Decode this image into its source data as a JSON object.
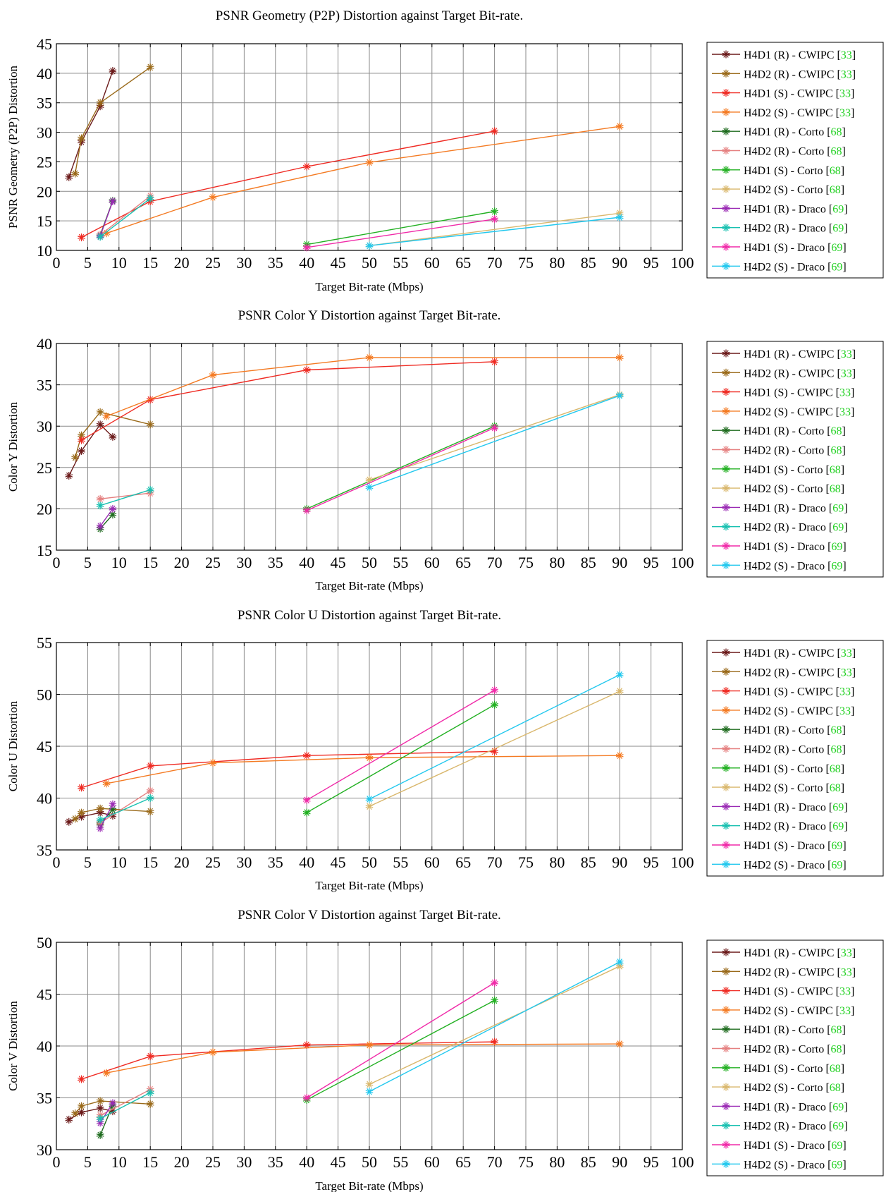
{
  "colors": {
    "H4D1 (R) - CWIPC": "#6b1a1a",
    "H4D2 (R) - CWIPC": "#9a6a1a",
    "H4D1 (S) - CWIPC": "#ef2a22",
    "H4D2 (S) - CWIPC": "#f47a22",
    "H4D1 (R) - Corto": "#1e6b1e",
    "H4D2 (R) - Corto": "#e58080",
    "H4D1 (S) - Corto": "#22b022",
    "H4D2 (S) - Corto": "#d9b76c",
    "H4D1 (R) - Draco": "#9a2ab4",
    "H4D2 (R) - Draco": "#18c0b0",
    "H4D1 (S) - Draco": "#f02aa8",
    "H4D2 (S) - Draco": "#22c8ee",
    "ref": "#20d020"
  },
  "legend": [
    {
      "name": "H4D1 (R) - CWIPC",
      "ref": "33"
    },
    {
      "name": "H4D2 (R) - CWIPC",
      "ref": "33"
    },
    {
      "name": "H4D1 (S) - CWIPC",
      "ref": "33"
    },
    {
      "name": "H4D2 (S) - CWIPC",
      "ref": "33"
    },
    {
      "name": "H4D1 (R) - Corto",
      "ref": "68"
    },
    {
      "name": "H4D2 (R) - Corto",
      "ref": "68"
    },
    {
      "name": "H4D1 (S) - Corto",
      "ref": "68"
    },
    {
      "name": "H4D2 (S) - Corto",
      "ref": "68"
    },
    {
      "name": "H4D1 (R) - Draco",
      "ref": "69"
    },
    {
      "name": "H4D2 (R) - Draco",
      "ref": "69"
    },
    {
      "name": "H4D1 (S) - Draco",
      "ref": "69"
    },
    {
      "name": "H4D2 (S) - Draco",
      "ref": "69"
    }
  ],
  "chart_data": [
    {
      "type": "line",
      "title": "PSNR Geometry (P2P) Distortion against Target Bit-rate.",
      "xlabel": "Target Bit-rate (Mbps)",
      "ylabel": "PSNR Geometry (P2P) Distortion",
      "xlim": [
        0,
        100
      ],
      "ylim": [
        10,
        45
      ],
      "xticks": [
        0,
        5,
        10,
        15,
        20,
        25,
        30,
        35,
        40,
        45,
        50,
        55,
        60,
        65,
        70,
        75,
        80,
        85,
        90,
        95,
        100
      ],
      "yticks": [
        10,
        15,
        20,
        25,
        30,
        35,
        40,
        45
      ],
      "grid": true,
      "legend_position": "right",
      "series": [
        {
          "name": "H4D1 (R) - CWIPC",
          "x": [
            2,
            4,
            7,
            9
          ],
          "y": [
            22.4,
            28.4,
            34.4,
            40.4
          ]
        },
        {
          "name": "H4D2 (R) - CWIPC",
          "x": [
            3,
            4,
            7,
            15
          ],
          "y": [
            23,
            29,
            35,
            41
          ]
        },
        {
          "name": "H4D1 (S) - CWIPC",
          "x": [
            4,
            15,
            40,
            70
          ],
          "y": [
            12.2,
            18.3,
            24.2,
            30.2
          ]
        },
        {
          "name": "H4D2 (S) - CWIPC",
          "x": [
            8,
            25,
            50,
            90
          ],
          "y": [
            12.9,
            19,
            24.9,
            31
          ]
        },
        {
          "name": "H4D1 (R) - Corto",
          "x": [
            7,
            9
          ],
          "y": [
            12.6,
            18.4
          ]
        },
        {
          "name": "H4D2 (R) - Corto",
          "x": [
            7,
            15
          ],
          "y": [
            12.6,
            19.2
          ]
        },
        {
          "name": "H4D1 (S) - Corto",
          "x": [
            40,
            70
          ],
          "y": [
            11,
            16.6
          ]
        },
        {
          "name": "H4D2 (S) - Corto",
          "x": [
            50,
            90
          ],
          "y": [
            10.8,
            16.3
          ]
        },
        {
          "name": "H4D1 (R) - Draco",
          "x": [
            7,
            9
          ],
          "y": [
            12.4,
            18.3
          ]
        },
        {
          "name": "H4D2 (R) - Draco",
          "x": [
            7,
            15
          ],
          "y": [
            12.3,
            18.8
          ]
        },
        {
          "name": "H4D1 (S) - Draco",
          "x": [
            40,
            70
          ],
          "y": [
            10.5,
            15.3
          ]
        },
        {
          "name": "H4D2 (S) - Draco",
          "x": [
            50,
            90
          ],
          "y": [
            10.8,
            15.6
          ]
        }
      ]
    },
    {
      "type": "line",
      "title": "PSNR Color Y Distortion against Target Bit-rate.",
      "xlabel": "Target Bit-rate (Mbps)",
      "ylabel": "Color Y Distortion",
      "xlim": [
        0,
        100
      ],
      "ylim": [
        15,
        40
      ],
      "xticks": [
        0,
        5,
        10,
        15,
        20,
        25,
        30,
        35,
        40,
        45,
        50,
        55,
        60,
        65,
        70,
        75,
        80,
        85,
        90,
        95,
        100
      ],
      "yticks": [
        15,
        20,
        25,
        30,
        35,
        40
      ],
      "grid": true,
      "legend_position": "right",
      "series": [
        {
          "name": "H4D1 (R) - CWIPC",
          "x": [
            2,
            4,
            7,
            9
          ],
          "y": [
            24,
            27,
            30.2,
            28.7
          ]
        },
        {
          "name": "H4D2 (R) - CWIPC",
          "x": [
            3,
            4,
            7,
            15
          ],
          "y": [
            26.2,
            28.9,
            31.7,
            30.2
          ]
        },
        {
          "name": "H4D1 (S) - CWIPC",
          "x": [
            4,
            15,
            40,
            70
          ],
          "y": [
            28.3,
            33.2,
            36.8,
            37.8
          ]
        },
        {
          "name": "H4D2 (S) - CWIPC",
          "x": [
            8,
            25,
            50,
            90
          ],
          "y": [
            31.2,
            36.2,
            38.3,
            38.3
          ]
        },
        {
          "name": "H4D1 (R) - Corto",
          "x": [
            7,
            9
          ],
          "y": [
            17.6,
            19.3
          ]
        },
        {
          "name": "H4D2 (R) - Corto",
          "x": [
            7,
            15
          ],
          "y": [
            21.2,
            21.9
          ]
        },
        {
          "name": "H4D1 (S) - Corto",
          "x": [
            40,
            70
          ],
          "y": [
            20,
            30
          ]
        },
        {
          "name": "H4D2 (S) - Corto",
          "x": [
            50,
            90
          ],
          "y": [
            23.5,
            33.8
          ]
        },
        {
          "name": "H4D1 (R) - Draco",
          "x": [
            7,
            9
          ],
          "y": [
            17.9,
            20
          ]
        },
        {
          "name": "H4D2 (R) - Draco",
          "x": [
            7,
            15
          ],
          "y": [
            20.4,
            22.3
          ]
        },
        {
          "name": "H4D1 (S) - Draco",
          "x": [
            40,
            70
          ],
          "y": [
            19.8,
            29.8
          ]
        },
        {
          "name": "H4D2 (S) - Draco",
          "x": [
            50,
            90
          ],
          "y": [
            22.6,
            33.7
          ]
        }
      ]
    },
    {
      "type": "line",
      "title": "PSNR Color U Distortion against Target Bit-rate.",
      "xlabel": "Target Bit-rate (Mbps)",
      "ylabel": "Color U Distortion",
      "xlim": [
        0,
        100
      ],
      "ylim": [
        35,
        55
      ],
      "xticks": [
        0,
        5,
        10,
        15,
        20,
        25,
        30,
        35,
        40,
        45,
        50,
        55,
        60,
        65,
        70,
        75,
        80,
        85,
        90,
        95,
        100
      ],
      "yticks": [
        35,
        40,
        45,
        50,
        55
      ],
      "grid": true,
      "legend_position": "right",
      "series": [
        {
          "name": "H4D1 (R) - CWIPC",
          "x": [
            2,
            4,
            7,
            9
          ],
          "y": [
            37.7,
            38.2,
            38.6,
            38.3
          ]
        },
        {
          "name": "H4D2 (R) - CWIPC",
          "x": [
            3,
            4,
            7,
            15
          ],
          "y": [
            38,
            38.6,
            39,
            38.7
          ]
        },
        {
          "name": "H4D1 (S) - CWIPC",
          "x": [
            4,
            15,
            40,
            70
          ],
          "y": [
            41,
            43.1,
            44.1,
            44.5
          ]
        },
        {
          "name": "H4D2 (S) - CWIPC",
          "x": [
            8,
            25,
            50,
            90
          ],
          "y": [
            41.4,
            43.4,
            43.9,
            44.1
          ]
        },
        {
          "name": "H4D1 (R) - Corto",
          "x": [
            7,
            9
          ],
          "y": [
            37.5,
            38.9
          ]
        },
        {
          "name": "H4D2 (R) - Corto",
          "x": [
            7,
            15
          ],
          "y": [
            37.6,
            40.7
          ]
        },
        {
          "name": "H4D1 (S) - Corto",
          "x": [
            40,
            70
          ],
          "y": [
            38.6,
            49
          ]
        },
        {
          "name": "H4D2 (S) - Corto",
          "x": [
            50,
            90
          ],
          "y": [
            39.2,
            50.3
          ]
        },
        {
          "name": "H4D1 (R) - Draco",
          "x": [
            7,
            9
          ],
          "y": [
            37.1,
            39.4
          ]
        },
        {
          "name": "H4D2 (R) - Draco",
          "x": [
            7,
            15
          ],
          "y": [
            37.9,
            40
          ]
        },
        {
          "name": "H4D1 (S) - Draco",
          "x": [
            40,
            70
          ],
          "y": [
            39.8,
            50.4
          ]
        },
        {
          "name": "H4D2 (S) - Draco",
          "x": [
            50,
            90
          ],
          "y": [
            39.9,
            51.9
          ]
        }
      ]
    },
    {
      "type": "line",
      "title": "PSNR Color V Distortion against Target Bit-rate.",
      "xlabel": "Target Bit-rate (Mbps)",
      "ylabel": "Color V Distortion",
      "xlim": [
        0,
        100
      ],
      "ylim": [
        30,
        50
      ],
      "xticks": [
        0,
        5,
        10,
        15,
        20,
        25,
        30,
        35,
        40,
        45,
        50,
        55,
        60,
        65,
        70,
        75,
        80,
        85,
        90,
        95,
        100
      ],
      "yticks": [
        30,
        35,
        40,
        45,
        50
      ],
      "grid": true,
      "legend_position": "right",
      "series": [
        {
          "name": "H4D1 (R) - CWIPC",
          "x": [
            2,
            4,
            7,
            9
          ],
          "y": [
            32.9,
            33.6,
            34,
            33.7
          ]
        },
        {
          "name": "H4D2 (R) - CWIPC",
          "x": [
            3,
            4,
            7,
            15
          ],
          "y": [
            33.5,
            34.2,
            34.7,
            34.4
          ]
        },
        {
          "name": "H4D1 (S) - CWIPC",
          "x": [
            4,
            15,
            40,
            70
          ],
          "y": [
            36.8,
            39,
            40.1,
            40.4
          ]
        },
        {
          "name": "H4D2 (S) - CWIPC",
          "x": [
            8,
            25,
            50,
            90
          ],
          "y": [
            37.4,
            39.4,
            40.1,
            40.2
          ]
        },
        {
          "name": "H4D1 (R) - Corto",
          "x": [
            7,
            9
          ],
          "y": [
            31.4,
            34.3
          ]
        },
        {
          "name": "H4D2 (R) - Corto",
          "x": [
            7,
            15
          ],
          "y": [
            33.3,
            35.8
          ]
        },
        {
          "name": "H4D1 (S) - Corto",
          "x": [
            40,
            70
          ],
          "y": [
            34.8,
            44.4
          ]
        },
        {
          "name": "H4D2 (S) - Corto",
          "x": [
            50,
            90
          ],
          "y": [
            36.3,
            47.7
          ]
        },
        {
          "name": "H4D1 (R) - Draco",
          "x": [
            7,
            9
          ],
          "y": [
            32.6,
            34.5
          ]
        },
        {
          "name": "H4D2 (R) - Draco",
          "x": [
            7,
            15
          ],
          "y": [
            33,
            35.5
          ]
        },
        {
          "name": "H4D1 (S) - Draco",
          "x": [
            40,
            70
          ],
          "y": [
            35,
            46.1
          ]
        },
        {
          "name": "H4D2 (S) - Draco",
          "x": [
            50,
            90
          ],
          "y": [
            35.6,
            48.1
          ]
        }
      ]
    }
  ]
}
